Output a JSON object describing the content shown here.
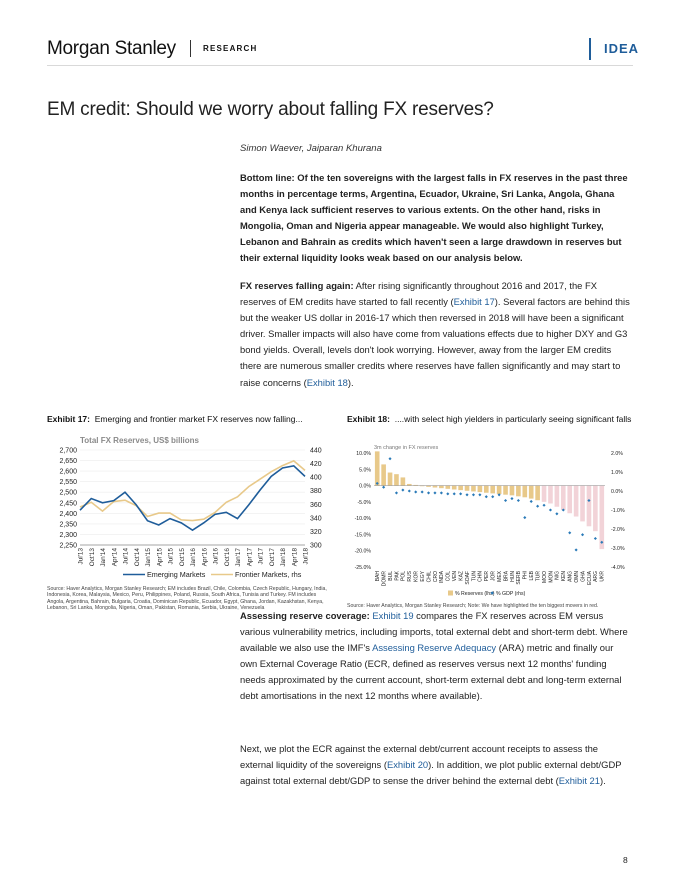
{
  "header": {
    "brand": "Morgan Stanley",
    "section": "RESEARCH",
    "tag": "IDEA"
  },
  "title": "EM credit: Should we worry about falling FX reserves?",
  "authors": "Simon Waever, Jaiparan Khurana",
  "bottom_line": "Bottom line: Of the ten sovereigns with the largest falls in FX reserves in the past three months in percentage terms, Argentina, Ecuador, Ukraine, Sri Lanka, Angola, Ghana and Kenya lack sufficient reserves to various extents. On the other hand, risks in Mongolia, Oman and Nigeria appear manageable. We would also highlight Turkey, Lebanon and Bahrain as credits which haven't seen a large drawdown in reserves but their external liquidity looks weak based on our analysis below.",
  "para1": {
    "lead": "FX reserves falling again:",
    "text_a": " After rising significantly throughout 2016 and 2017, the FX reserves of EM credits have started to fall recently (",
    "link_a": "Exhibit 17",
    "text_b": "). Several factors are behind this but the weaker US dollar in 2016-17 which then reversed in 2018 will have been a significant driver. Smaller impacts will also have come from valuations effects due to higher DXY and G3 bond yields. Overall, levels don't look worrying. However, away from the larger EM credits there are numerous smaller credits where reserves have fallen significantly and may start to raise concerns (",
    "link_b": "Exhibit 18",
    "text_c": ")."
  },
  "para2": {
    "lead": "Assessing reserve coverage:",
    "text_a": " ",
    "link_a": "Exhibit 19",
    "text_b": " compares the FX reserves across EM versus various vulnerability metrics, including imports, total external debt and short-term debt. Where available we also use the IMF's ",
    "link_b": "Assessing Reserve Adequacy",
    "text_c": " (ARA) metric and finally our own External Coverage Ratio (ECR, defined as reserves versus next 12 months' funding needs approximated by the current account, short-term external debt and long-term external debt amortisations in the next 12 months where available)."
  },
  "para3": {
    "text_a": "Next, we plot the ECR against the external debt/current account receipts to assess the external liquidity of the sovereigns (",
    "link_a": "Exhibit 20",
    "text_b": "). In addition, we plot public external debt/GDP against total external debt/GDP to sense the driver behind the external debt (",
    "link_b": "Exhibit 21",
    "text_c": ")."
  },
  "exhibit17": {
    "label": "Exhibit 17:",
    "caption": "Emerging and frontier market FX reserves now falling...",
    "source": "Source: Haver Analytics, Morgan Stanley Research; EM includes Brazil, Chile, Colombia, Czech Republic, Hungary, India, Indonesia, Korea, Malaysia, Mexico, Peru, Philippines, Poland, Russia, South Africa, Tunisia and Turkey. FM includes Angola, Argentina, Bahrain, Bulgaria, Croatia, Dominican Republic, Ecuador, Egypt, Ghana, Jordan, Kazakhstan, Kenya, Lebanon, Sri Lanka, Mongolia, Nigeria, Oman, Pakistan, Romania, Serbia, Ukraine, Venezuela"
  },
  "exhibit18": {
    "label": "Exhibit 18:",
    "caption": "....with select high yielders in particularly seeing significant falls",
    "source": "Source: Haver Analytics, Morgan Stanley Research; Note: We have highlighted the ten biggest movers in red."
  },
  "page_number": "8",
  "colors": {
    "em_line": "#1f5d9a",
    "fm_line": "#e8c98a",
    "bar_gold": "#e8c98a",
    "bar_pink": "#f2d3d8",
    "dot_blue": "#2a7ab8",
    "link": "#1f5d9a"
  },
  "chart_data": [
    {
      "type": "line",
      "title": "Total FX Reserves, US$ billions",
      "x": [
        "Jul'13",
        "Oct'13",
        "Jan'14",
        "Apr'14",
        "Jul'14",
        "Oct'14",
        "Jan'15",
        "Apr'15",
        "Jul'15",
        "Oct'15",
        "Jan'16",
        "Apr'16",
        "Jul'16",
        "Oct'16",
        "Jan'17",
        "Apr'17",
        "Jul'17",
        "Oct'17",
        "Jan'18",
        "Apr'18",
        "Jul'18"
      ],
      "ylim": [
        2250,
        2700
      ],
      "yticks": [
        "2,700",
        "2,650",
        "2,600",
        "2,550",
        "2,500",
        "2,450",
        "2,400",
        "2,350",
        "2,300",
        "2,250"
      ],
      "y2lim": [
        300,
        440
      ],
      "y2ticks": [
        "440",
        "420",
        "400",
        "380",
        "360",
        "340",
        "320",
        "300"
      ],
      "series": [
        {
          "name": "Emerging Markets",
          "axis": "left",
          "values": [
            2415,
            2470,
            2450,
            2460,
            2500,
            2440,
            2365,
            2345,
            2375,
            2355,
            2320,
            2355,
            2395,
            2405,
            2375,
            2440,
            2510,
            2575,
            2615,
            2625,
            2575
          ]
        },
        {
          "name": "Frontier Markets, rhs",
          "axis": "right",
          "values": [
            356,
            363,
            350,
            364,
            366,
            358,
            342,
            347,
            347,
            337,
            336,
            338,
            348,
            363,
            371,
            386,
            397,
            408,
            417,
            424,
            410
          ]
        }
      ],
      "legend": "bottom"
    },
    {
      "type": "bar",
      "title": "3m change in FX reserves",
      "categories": [
        "BAH",
        "DOMR",
        "BUL",
        "PAK",
        "POL",
        "RUS",
        "KOR",
        "EGY",
        "CHIL",
        "CRO",
        "INDA",
        "COL",
        "VEN",
        "KAZ",
        "SOAF",
        "TUN",
        "CHN",
        "PER",
        "JOR",
        "MEX",
        "BRA",
        "HUN",
        "SERB",
        "PHI",
        "LEB",
        "TUR",
        "MOO",
        "MON",
        "NIG",
        "KEN",
        "ANG",
        "OMN",
        "GHA",
        "ECUA",
        "ARG",
        "UKR"
      ],
      "ylim": [
        -25,
        10
      ],
      "yticks": [
        "10.0%",
        "5.0%",
        "0.0%",
        "-5.0%",
        "-10.0%",
        "-15.0%",
        "-20.0%",
        "-25.0%"
      ],
      "y2lim": [
        -4,
        2
      ],
      "y2ticks": [
        "2.0%",
        "1.0%",
        "0.0%",
        "-1.0%",
        "-2.0%",
        "-3.0%",
        "-4.0%"
      ],
      "series": [
        {
          "name": "% Reserves (lhs)",
          "axis": "left",
          "values": [
            10.5,
            6.5,
            4.0,
            3.5,
            2.5,
            0.5,
            0.2,
            -0.2,
            -0.4,
            -0.6,
            -0.8,
            -1.0,
            -1.2,
            -1.4,
            -1.6,
            -1.8,
            -2.0,
            -2.2,
            -2.4,
            -2.6,
            -2.8,
            -3.0,
            -3.3,
            -3.6,
            -4.0,
            -4.5,
            -5.0,
            -5.5,
            -6.5,
            -7.5,
            -8.5,
            -9.5,
            -11.0,
            -12.5,
            -14.0,
            -19.5
          ]
        },
        {
          "name": "% GDP (rhs)",
          "axis": "right",
          "values": [
            0.4,
            0.2,
            1.7,
            -0.1,
            0.05,
            0.0,
            -0.05,
            -0.05,
            -0.1,
            -0.1,
            -0.1,
            -0.15,
            -0.15,
            -0.15,
            -0.2,
            -0.2,
            -0.2,
            -0.3,
            -0.3,
            -0.2,
            -0.5,
            -0.4,
            -0.5,
            -1.4,
            -0.55,
            -0.8,
            -0.75,
            -1.0,
            -1.2,
            -1.0,
            -2.2,
            -3.1,
            -2.3,
            -0.5,
            -2.5,
            -2.7
          ]
        }
      ],
      "legend": "bottom"
    }
  ]
}
